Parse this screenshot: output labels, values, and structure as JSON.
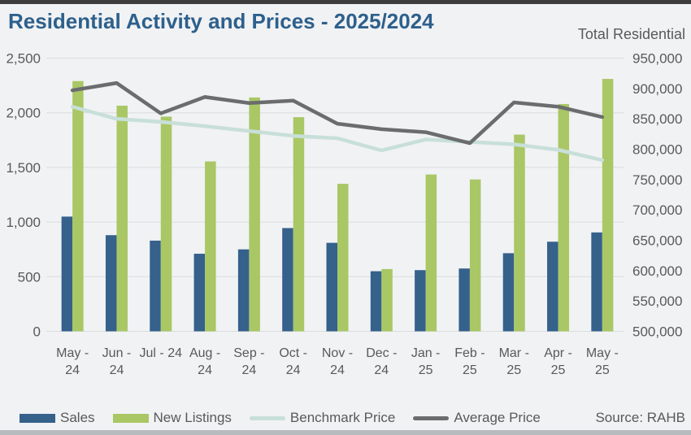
{
  "header": {
    "title": "Residential Activity and Prices - 2025/2024",
    "right_axis_title": "Total Residential"
  },
  "source": "Source: RAHB",
  "colors": {
    "title": "#2d608c",
    "text": "#58595b",
    "axis_text": "#595959",
    "gridline": "#dadcde",
    "background": "#f1f2f4",
    "sales_bar": "#35618b",
    "new_listings_bar": "#a9c765",
    "benchmark_line": "#c8dfd9",
    "average_line": "#6b6c6e",
    "top_bar": "#3d3d3d",
    "bottom_bar": "#b8bbbe"
  },
  "chart_data": {
    "type": "bar",
    "subtype": "combo-bar-line",
    "title": "Residential Activity and Prices - 2025/2024",
    "xlabel": "",
    "ylabel_left": "",
    "ylabel_right": "Total Residential",
    "grid": true,
    "legend_position": "bottom",
    "categories": [
      "May - 24",
      "Jun - 24",
      "Jul - 24",
      "Aug - 24",
      "Sep - 24",
      "Oct - 24",
      "Nov - 24",
      "Dec - 24",
      "Jan - 25",
      "Feb - 25",
      "Mar - 25",
      "Apr - 25",
      "May - 25"
    ],
    "category_label_lines": [
      [
        "May -",
        "24"
      ],
      [
        "Jun -",
        "24"
      ],
      [
        "Jul - 24"
      ],
      [
        "Aug -",
        "24"
      ],
      [
        "Sep -",
        "24"
      ],
      [
        "Oct -",
        "24"
      ],
      [
        "Nov -",
        "24"
      ],
      [
        "Dec -",
        "24"
      ],
      [
        "Jan -",
        "25"
      ],
      [
        "Feb -",
        "25"
      ],
      [
        "Mar -",
        "25"
      ],
      [
        "Apr -",
        "25"
      ],
      [
        "May -",
        "25"
      ]
    ],
    "series": [
      {
        "name": "Sales",
        "type": "bar",
        "axis": "left",
        "color": "#35618b",
        "values": [
          1050,
          880,
          830,
          710,
          750,
          945,
          810,
          550,
          560,
          575,
          715,
          820,
          905
        ]
      },
      {
        "name": "New Listings",
        "type": "bar",
        "axis": "left",
        "color": "#a9c765",
        "values": [
          2290,
          2065,
          1965,
          1555,
          2140,
          1960,
          1350,
          570,
          1435,
          1390,
          1800,
          2080,
          2310
        ]
      },
      {
        "name": "Benchmark Price",
        "type": "line",
        "axis": "right",
        "color": "#c8dfd9",
        "values": [
          870000,
          850000,
          845000,
          838000,
          830000,
          822000,
          818000,
          798000,
          816000,
          812000,
          808000,
          799000,
          782000
        ]
      },
      {
        "name": "Average Price",
        "type": "line",
        "axis": "right",
        "color": "#6b6c6e",
        "values": [
          897000,
          909000,
          859000,
          886000,
          876000,
          880000,
          842000,
          833000,
          828000,
          810000,
          877000,
          870000,
          853000
        ]
      }
    ],
    "left_axis": {
      "min": 0,
      "max": 2500,
      "step": 500,
      "labels": [
        "0",
        "500",
        "1,000",
        "1,500",
        "2,000",
        "2,500"
      ]
    },
    "right_axis": {
      "min": 500000,
      "max": 950000,
      "step": 50000,
      "labels": [
        "500,000",
        "550,000",
        "600,000",
        "650,000",
        "700,000",
        "750,000",
        "800,000",
        "850,000",
        "900,000",
        "950,000"
      ]
    }
  }
}
